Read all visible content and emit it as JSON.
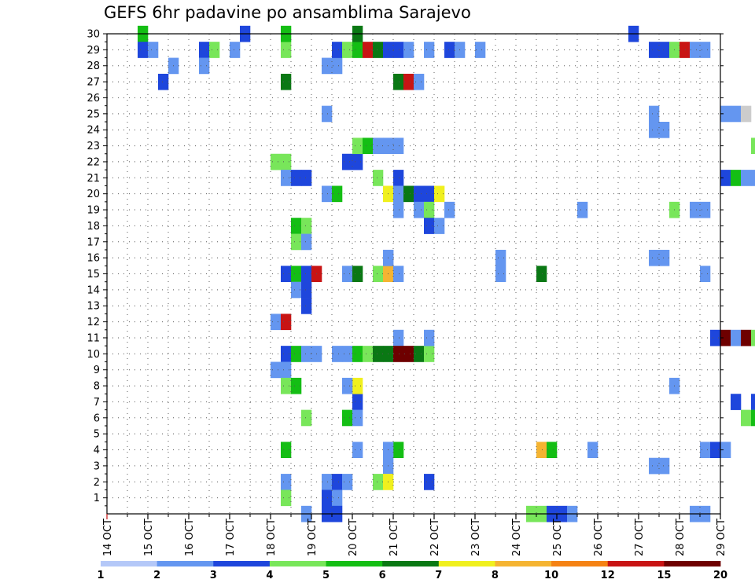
{
  "title": "GEFS 6hr padavine po ansamblima Sarajevo",
  "chart_data": {
    "type": "heatmap",
    "title": "GEFS 6hr padavine po ansamblima Sarajevo",
    "x_tick_labels": [
      "14 OCT",
      "15 OCT",
      "16 OCT",
      "17 OCT",
      "18 OCT",
      "19 OCT",
      "20 OCT",
      "21 OCT",
      "22 OCT",
      "23 OCT",
      "24 OCT",
      "25 OCT",
      "26 OCT",
      "27 OCT",
      "28 OCT",
      "29 OCT"
    ],
    "x_range": [
      "14 OCT",
      "29 OCT"
    ],
    "step_hours": 6,
    "y_range": [
      0,
      30
    ],
    "y_tick_labels": [
      "1",
      "2",
      "3",
      "4",
      "5",
      "6",
      "7",
      "8",
      "9",
      "10",
      "11",
      "12",
      "13",
      "14",
      "15",
      "16",
      "17",
      "18",
      "19",
      "20",
      "21",
      "22",
      "23",
      "24",
      "25",
      "26",
      "27",
      "28",
      "29",
      "30"
    ],
    "grid": "dotted",
    "colorbar": {
      "labels": [
        "1",
        "2",
        "3",
        "4",
        "5",
        "6",
        "7",
        "8",
        "10",
        "12",
        "15",
        "20"
      ],
      "colors": [
        "#b4c8f8",
        "#6496f0",
        "#1e46dc",
        "#78e65a",
        "#14be14",
        "#0a7814",
        "#f0f01e",
        "#f5b432",
        "#f58214",
        "#c81414",
        "#6e0000"
      ]
    },
    "cells": [
      [
        3,
        30,
        4
      ],
      [
        3,
        29,
        2
      ],
      [
        4,
        29,
        1
      ],
      [
        6,
        28,
        1
      ],
      [
        5,
        27,
        2
      ],
      [
        9,
        29,
        2
      ],
      [
        9,
        28,
        1
      ],
      [
        10,
        29,
        3
      ],
      [
        13,
        30,
        2
      ],
      [
        12,
        29,
        1
      ],
      [
        17,
        29,
        3
      ],
      [
        17,
        30,
        4
      ],
      [
        17,
        27,
        5
      ],
      [
        17,
        22,
        3
      ],
      [
        16,
        22,
        3
      ],
      [
        17,
        21,
        1
      ],
      [
        18,
        21,
        2
      ],
      [
        19,
        21,
        2
      ],
      [
        17,
        15,
        2
      ],
      [
        18,
        15,
        4
      ],
      [
        19,
        15,
        2
      ],
      [
        20,
        15,
        9
      ],
      [
        18,
        14,
        1
      ],
      [
        19,
        14,
        2
      ],
      [
        19,
        13,
        2
      ],
      [
        16,
        12,
        1
      ],
      [
        17,
        12,
        9
      ],
      [
        17,
        10,
        2
      ],
      [
        18,
        10,
        4
      ],
      [
        19,
        10,
        1
      ],
      [
        20,
        10,
        1
      ],
      [
        16,
        9,
        1
      ],
      [
        17,
        9,
        1
      ],
      [
        17,
        8,
        3
      ],
      [
        18,
        8,
        4
      ],
      [
        19,
        6,
        3
      ],
      [
        17,
        4,
        4
      ],
      [
        17,
        2,
        1
      ],
      [
        17,
        1,
        3
      ],
      [
        19,
        0,
        1
      ],
      [
        18,
        18,
        4
      ],
      [
        19,
        18,
        3
      ],
      [
        18,
        17,
        3
      ],
      [
        19,
        17,
        1
      ],
      [
        21,
        28,
        1
      ],
      [
        22,
        28,
        1
      ],
      [
        22,
        29,
        2
      ],
      [
        23,
        29,
        3
      ],
      [
        24,
        29,
        4
      ],
      [
        25,
        29,
        9
      ],
      [
        26,
        29,
        5
      ],
      [
        27,
        29,
        2
      ],
      [
        24,
        30,
        5
      ],
      [
        23,
        22,
        2
      ],
      [
        24,
        22,
        2
      ],
      [
        24,
        23,
        3
      ],
      [
        25,
        23,
        4
      ],
      [
        26,
        23,
        1
      ],
      [
        21,
        20,
        1
      ],
      [
        22,
        20,
        4
      ],
      [
        21,
        25,
        1
      ],
      [
        23,
        15,
        1
      ],
      [
        24,
        15,
        5
      ],
      [
        22,
        10,
        1
      ],
      [
        23,
        10,
        1
      ],
      [
        24,
        10,
        4
      ],
      [
        25,
        10,
        3
      ],
      [
        26,
        10,
        5
      ],
      [
        21,
        2,
        1
      ],
      [
        22,
        2,
        2
      ],
      [
        23,
        2,
        1
      ],
      [
        21,
        1,
        2
      ],
      [
        22,
        1,
        1
      ],
      [
        21,
        0,
        2
      ],
      [
        22,
        0,
        2
      ],
      [
        24,
        4,
        1
      ],
      [
        24,
        7,
        2
      ],
      [
        24,
        8,
        6
      ],
      [
        23,
        8,
        1
      ],
      [
        23,
        6,
        4
      ],
      [
        24,
        6,
        1
      ],
      [
        28,
        29,
        2
      ],
      [
        29,
        29,
        1
      ],
      [
        28,
        27,
        5
      ],
      [
        29,
        27,
        9
      ],
      [
        30,
        27,
        1
      ],
      [
        27,
        23,
        1
      ],
      [
        28,
        23,
        1
      ],
      [
        28,
        21,
        2
      ],
      [
        27,
        20,
        6
      ],
      [
        28,
        20,
        1
      ],
      [
        29,
        20,
        5
      ],
      [
        30,
        20,
        2
      ],
      [
        31,
        20,
        2
      ],
      [
        32,
        20,
        6
      ],
      [
        28,
        19,
        1
      ],
      [
        30,
        19,
        1
      ],
      [
        31,
        19,
        3
      ],
      [
        31,
        18,
        2
      ],
      [
        26,
        21,
        3
      ],
      [
        26,
        15,
        3
      ],
      [
        27,
        15,
        7
      ],
      [
        28,
        15,
        1
      ],
      [
        27,
        16,
        1
      ],
      [
        27,
        16,
        1
      ],
      [
        28,
        11,
        1
      ],
      [
        27,
        10,
        5
      ],
      [
        28,
        10,
        10
      ],
      [
        29,
        10,
        10
      ],
      [
        30,
        10,
        5
      ],
      [
        31,
        10,
        3
      ],
      [
        28,
        4,
        4
      ],
      [
        27,
        4,
        1
      ],
      [
        27,
        3,
        1
      ],
      [
        26,
        2,
        3
      ],
      [
        27,
        2,
        6
      ],
      [
        31,
        2,
        2
      ],
      [
        31,
        11,
        1
      ],
      [
        32,
        18,
        1
      ],
      [
        33,
        19,
        1
      ],
      [
        33,
        29,
        2
      ],
      [
        34,
        29,
        1
      ],
      [
        36,
        29,
        1
      ],
      [
        31,
        29,
        1
      ],
      [
        38,
        16,
        1
      ],
      [
        38,
        15,
        1
      ],
      [
        42,
        15,
        5
      ],
      [
        41,
        0,
        3
      ],
      [
        42,
        0,
        3
      ],
      [
        43,
        0,
        2
      ],
      [
        44,
        0,
        2
      ],
      [
        45,
        0,
        1
      ],
      [
        42,
        4,
        7
      ],
      [
        43,
        4,
        4
      ],
      [
        46,
        19,
        1
      ],
      [
        47,
        4,
        1
      ],
      [
        53,
        25,
        1
      ],
      [
        53,
        24,
        1
      ],
      [
        54,
        24,
        1
      ],
      [
        53,
        16,
        1
      ],
      [
        54,
        16,
        1
      ],
      [
        51,
        30,
        2
      ],
      [
        53,
        29,
        2
      ],
      [
        54,
        29,
        2
      ],
      [
        55,
        29,
        3
      ],
      [
        56,
        29,
        9
      ],
      [
        57,
        29,
        1
      ],
      [
        58,
        29,
        1
      ],
      [
        55,
        19,
        3
      ],
      [
        57,
        19,
        1
      ],
      [
        58,
        19,
        1
      ],
      [
        55,
        8,
        1
      ],
      [
        53,
        3,
        1
      ],
      [
        54,
        3,
        1
      ],
      [
        57,
        0,
        1
      ],
      [
        58,
        0,
        1
      ],
      [
        58,
        15,
        1
      ],
      [
        58,
        4,
        1
      ],
      [
        59,
        4,
        2
      ],
      [
        60,
        4,
        1
      ],
      [
        59,
        11,
        2
      ],
      [
        60,
        11,
        10
      ],
      [
        61,
        11,
        1
      ],
      [
        62,
        11,
        10
      ],
      [
        63,
        11,
        3
      ],
      [
        60,
        25,
        1
      ],
      [
        61,
        25,
        1
      ],
      [
        62,
        25,
        11
      ],
      [
        60,
        21,
        2
      ],
      [
        61,
        21,
        4
      ],
      [
        62,
        21,
        1
      ],
      [
        63,
        21,
        1
      ],
      [
        63,
        23,
        3
      ],
      [
        64,
        22,
        2
      ],
      [
        64,
        23,
        2
      ],
      [
        64,
        12,
        1
      ],
      [
        61,
        7,
        2
      ],
      [
        63,
        7,
        2
      ],
      [
        62,
        6,
        3
      ],
      [
        63,
        6,
        4
      ],
      [
        64,
        6,
        4
      ]
    ]
  }
}
